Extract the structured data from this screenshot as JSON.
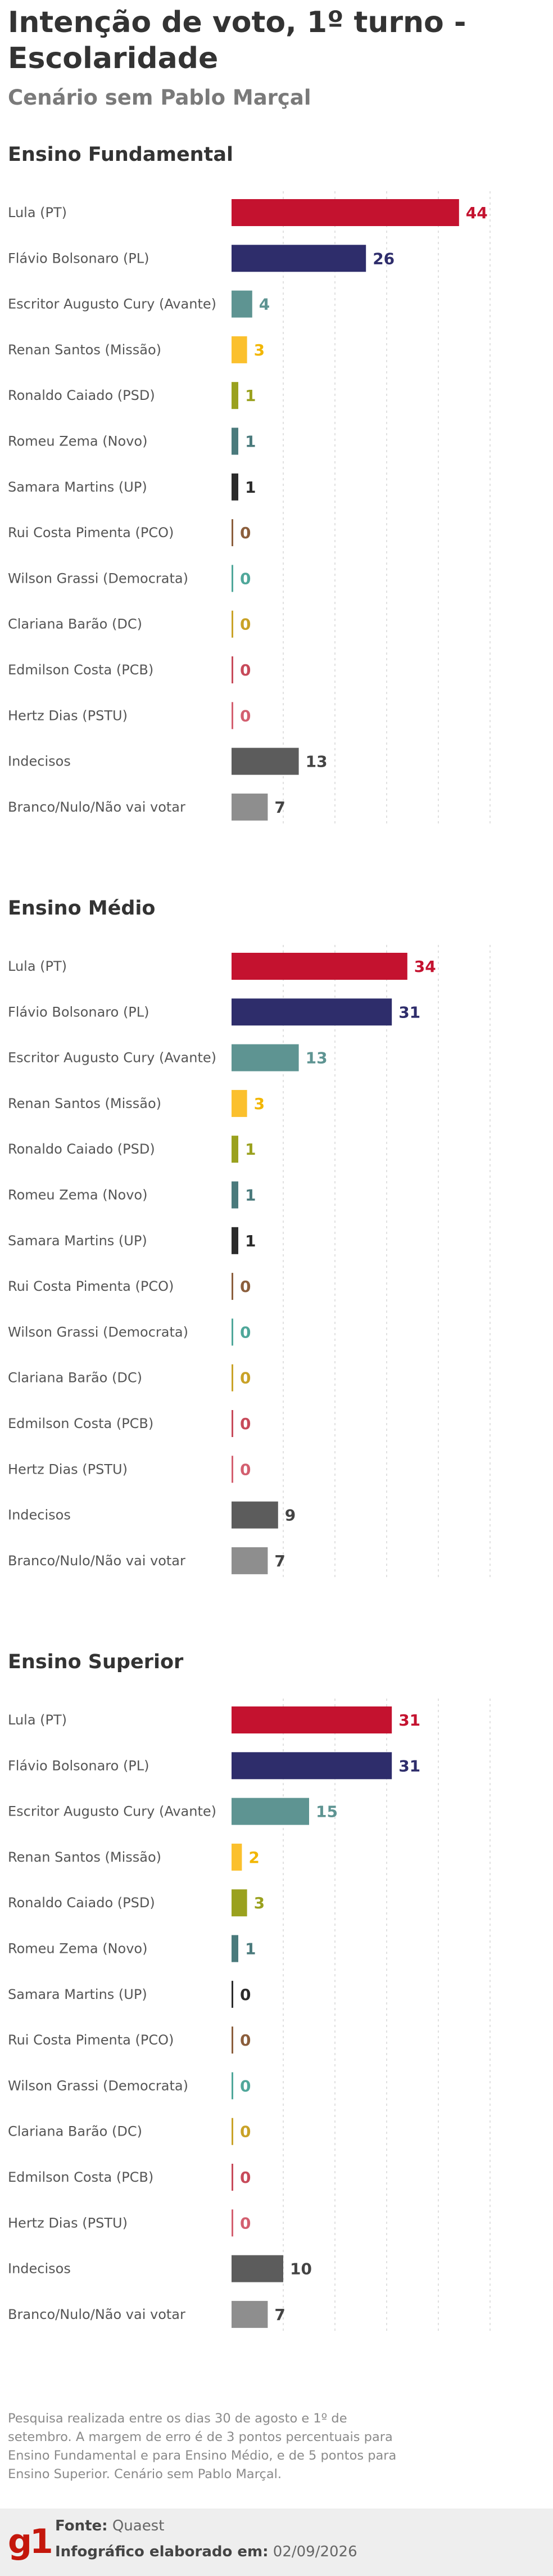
{
  "title": "Intenção de voto, 1º turno - Escolaridade",
  "subtitle": "Cenário sem Pablo Marçal",
  "categories": [
    "Lula (PT)",
    "Flávio Bolsonaro (PL)",
    "Escritor Augusto Cury (Avante)",
    "Renan Santos (Missão)",
    "Ronaldo Caiado (PSD)",
    "Romeu Zema (Novo)",
    "Samara Martins (UP)",
    "Rui Costa Pimenta (PCO)",
    "Wilson Grassi (Democrata)",
    "Clariana Barão (DC)",
    "Edmilson Costa (PCB)",
    "Hertz Dias (PSTU)",
    "Indecisos",
    "Branco/Nulo/Não vai votar"
  ],
  "colors": {
    "bars": [
      "#c4122f",
      "#2e2d6b",
      "#5e9492",
      "#fbc02d",
      "#9aa11e",
      "#4a7a7c",
      "#2b2b2b",
      "#8b5e3c",
      "#4fa79a",
      "#c9a227",
      "#c74a5a",
      "#d35f6f",
      "#5c5c5c",
      "#8e8e8e"
    ],
    "labels": [
      "#c4122f",
      "#2e2d6b",
      "#5e9492",
      "#f2b600",
      "#9aa11e",
      "#4a7a7c",
      "#2b2b2b",
      "#8b5e3c",
      "#4fa79a",
      "#c9a227",
      "#c74a5a",
      "#d35f6f",
      "#444444",
      "#444444"
    ]
  },
  "chart_data": [
    {
      "type": "bar",
      "title": "Ensino Fundamental",
      "categories": [
        "Lula (PT)",
        "Flávio Bolsonaro (PL)",
        "Escritor Augusto Cury (Avante)",
        "Renan Santos (Missão)",
        "Ronaldo Caiado (PSD)",
        "Romeu Zema (Novo)",
        "Samara Martins (UP)",
        "Rui Costa Pimenta (PCO)",
        "Wilson Grassi (Democrata)",
        "Clariana Barão (DC)",
        "Edmilson Costa (PCB)",
        "Hertz Dias (PSTU)",
        "Indecisos",
        "Branco/Nulo/Não vai votar"
      ],
      "values": [
        44,
        26,
        4,
        3,
        1,
        1,
        1,
        0,
        0,
        0,
        0,
        0,
        13,
        7
      ],
      "orientation": "horizontal",
      "xlim": [
        0,
        50
      ],
      "grid": true
    },
    {
      "type": "bar",
      "title": "Ensino Médio",
      "categories": [
        "Lula (PT)",
        "Flávio Bolsonaro (PL)",
        "Escritor Augusto Cury (Avante)",
        "Renan Santos (Missão)",
        "Ronaldo Caiado (PSD)",
        "Romeu Zema (Novo)",
        "Samara Martins (UP)",
        "Rui Costa Pimenta (PCO)",
        "Wilson Grassi (Democrata)",
        "Clariana Barão (DC)",
        "Edmilson Costa (PCB)",
        "Hertz Dias (PSTU)",
        "Indecisos",
        "Branco/Nulo/Não vai votar"
      ],
      "values": [
        34,
        31,
        13,
        3,
        1,
        1,
        1,
        0,
        0,
        0,
        0,
        0,
        9,
        7
      ],
      "orientation": "horizontal",
      "xlim": [
        0,
        50
      ],
      "grid": true
    },
    {
      "type": "bar",
      "title": "Ensino Superior",
      "categories": [
        "Lula (PT)",
        "Flávio Bolsonaro (PL)",
        "Escritor Augusto Cury (Avante)",
        "Renan Santos (Missão)",
        "Ronaldo Caiado (PSD)",
        "Romeu Zema (Novo)",
        "Samara Martins (UP)",
        "Rui Costa Pimenta (PCO)",
        "Wilson Grassi (Democrata)",
        "Clariana Barão (DC)",
        "Edmilson Costa (PCB)",
        "Hertz Dias (PSTU)",
        "Indecisos",
        "Branco/Nulo/Não vai votar"
      ],
      "values": [
        31,
        31,
        15,
        2,
        3,
        1,
        0,
        0,
        0,
        0,
        0,
        0,
        10,
        7
      ],
      "orientation": "horizontal",
      "xlim": [
        0,
        50
      ],
      "grid": true
    }
  ],
  "note": "Pesquisa realizada entre os dias 30 de agosto e 1º de setembro. A margem de erro é de 3 pontos percentuais para Ensino Fundamental e para Ensino Médio, e de 5 pontos para Ensino Superior. Cenário sem Pablo Marçal.",
  "footer": {
    "logo": "g1",
    "source_label": "Fonte:",
    "source_value": "Quaest",
    "credit_label": "Infográfico elaborado em:",
    "credit_value": "02/09/2026"
  }
}
